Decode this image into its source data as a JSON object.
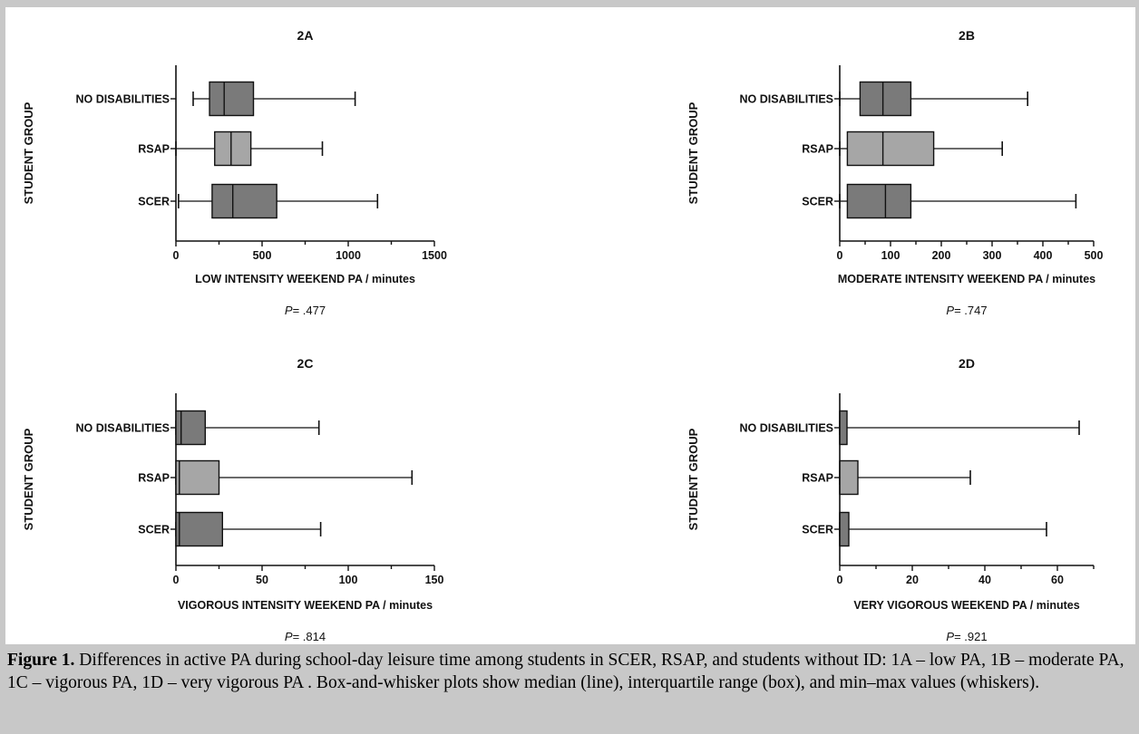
{
  "chart_data": [
    {
      "id": "2A",
      "type": "boxplot",
      "title": "2A",
      "xlabel": "LOW INTENSITY WEEKEND PA / minutes",
      "ylabel": "STUDENT GROUP",
      "xlim": [
        0,
        1500
      ],
      "xticks": [
        0,
        500,
        1000,
        1500
      ],
      "categories": [
        "NO DISABILITIES",
        "RSAP",
        "SCER"
      ],
      "series": [
        {
          "group": "NO DISABILITIES",
          "min": 100,
          "q1": 195,
          "median": 280,
          "q3": 450,
          "max": 1040
        },
        {
          "group": "RSAP",
          "min": 0,
          "q1": 225,
          "median": 320,
          "q3": 435,
          "max": 850
        },
        {
          "group": "SCER",
          "min": 15,
          "q1": 210,
          "median": 330,
          "q3": 585,
          "max": 1170
        }
      ],
      "p_label": "P",
      "p_value": "= .477"
    },
    {
      "id": "2B",
      "type": "boxplot",
      "title": "2B",
      "xlabel": "MODERATE INTENSITY WEEKEND PA / minutes",
      "ylabel": "STUDENT GROUP",
      "xlim": [
        0,
        500
      ],
      "xticks": [
        0,
        100,
        200,
        300,
        400,
        500
      ],
      "categories": [
        "NO DISABILITIES",
        "RSAP",
        "SCER"
      ],
      "series": [
        {
          "group": "NO DISABILITIES",
          "min": 0,
          "q1": 40,
          "median": 85,
          "q3": 140,
          "max": 370
        },
        {
          "group": "RSAP",
          "min": 0,
          "q1": 15,
          "median": 85,
          "q3": 185,
          "max": 320
        },
        {
          "group": "SCER",
          "min": 0,
          "q1": 15,
          "median": 90,
          "q3": 140,
          "max": 465
        }
      ],
      "p_label": "P",
      "p_value": "= .747"
    },
    {
      "id": "2C",
      "type": "boxplot",
      "title": "2C",
      "xlabel": "VIGOROUS INTENSITY WEEKEND PA / minutes",
      "ylabel": "STUDENT GROUP",
      "xlim": [
        0,
        150
      ],
      "xticks": [
        0,
        50,
        100,
        150
      ],
      "categories": [
        "NO DISABILITIES",
        "RSAP",
        "SCER"
      ],
      "series": [
        {
          "group": "NO DISABILITIES",
          "min": 0,
          "q1": 0,
          "median": 3,
          "q3": 17,
          "max": 83
        },
        {
          "group": "RSAP",
          "min": 0,
          "q1": 0,
          "median": 2,
          "q3": 25,
          "max": 137
        },
        {
          "group": "SCER",
          "min": 0,
          "q1": 0,
          "median": 2,
          "q3": 27,
          "max": 84
        }
      ],
      "p_label": "P",
      "p_value": "= .814"
    },
    {
      "id": "2D",
      "type": "boxplot",
      "title": "2D",
      "xlabel": "VERY VIGOROUS WEEKEND PA / minutes",
      "ylabel": "STUDENT GROUP",
      "xlim": [
        0,
        70
      ],
      "xticks": [
        0,
        20,
        40,
        60
      ],
      "categories": [
        "NO DISABILITIES",
        "RSAP",
        "SCER"
      ],
      "series": [
        {
          "group": "NO DISABILITIES",
          "min": 0,
          "q1": 0,
          "median": 0,
          "q3": 2,
          "max": 66
        },
        {
          "group": "RSAP",
          "min": 0,
          "q1": 0,
          "median": 0,
          "q3": 5,
          "max": 36
        },
        {
          "group": "SCER",
          "min": 0,
          "q1": 0,
          "median": 0,
          "q3": 2.5,
          "max": 57
        }
      ],
      "p_label": "P",
      "p_value": "= .921"
    }
  ],
  "colors": {
    "dark_box": "#7a7a7a",
    "light_box": "#a6a6a6",
    "figure_background": "#ffffff",
    "page_background": "#c8c8c8"
  },
  "caption": {
    "label": "Figure 1.",
    "text": " Differences in active PA during school-day leisure time among students in SCER, RSAP, and students without ID: 1A – low PA, 1B – moderate PA, 1C – vigorous PA, 1D – very vigorous PA . Box-and-whisker plots show median (line), interquartile range (box), and min–max values (whiskers)."
  }
}
